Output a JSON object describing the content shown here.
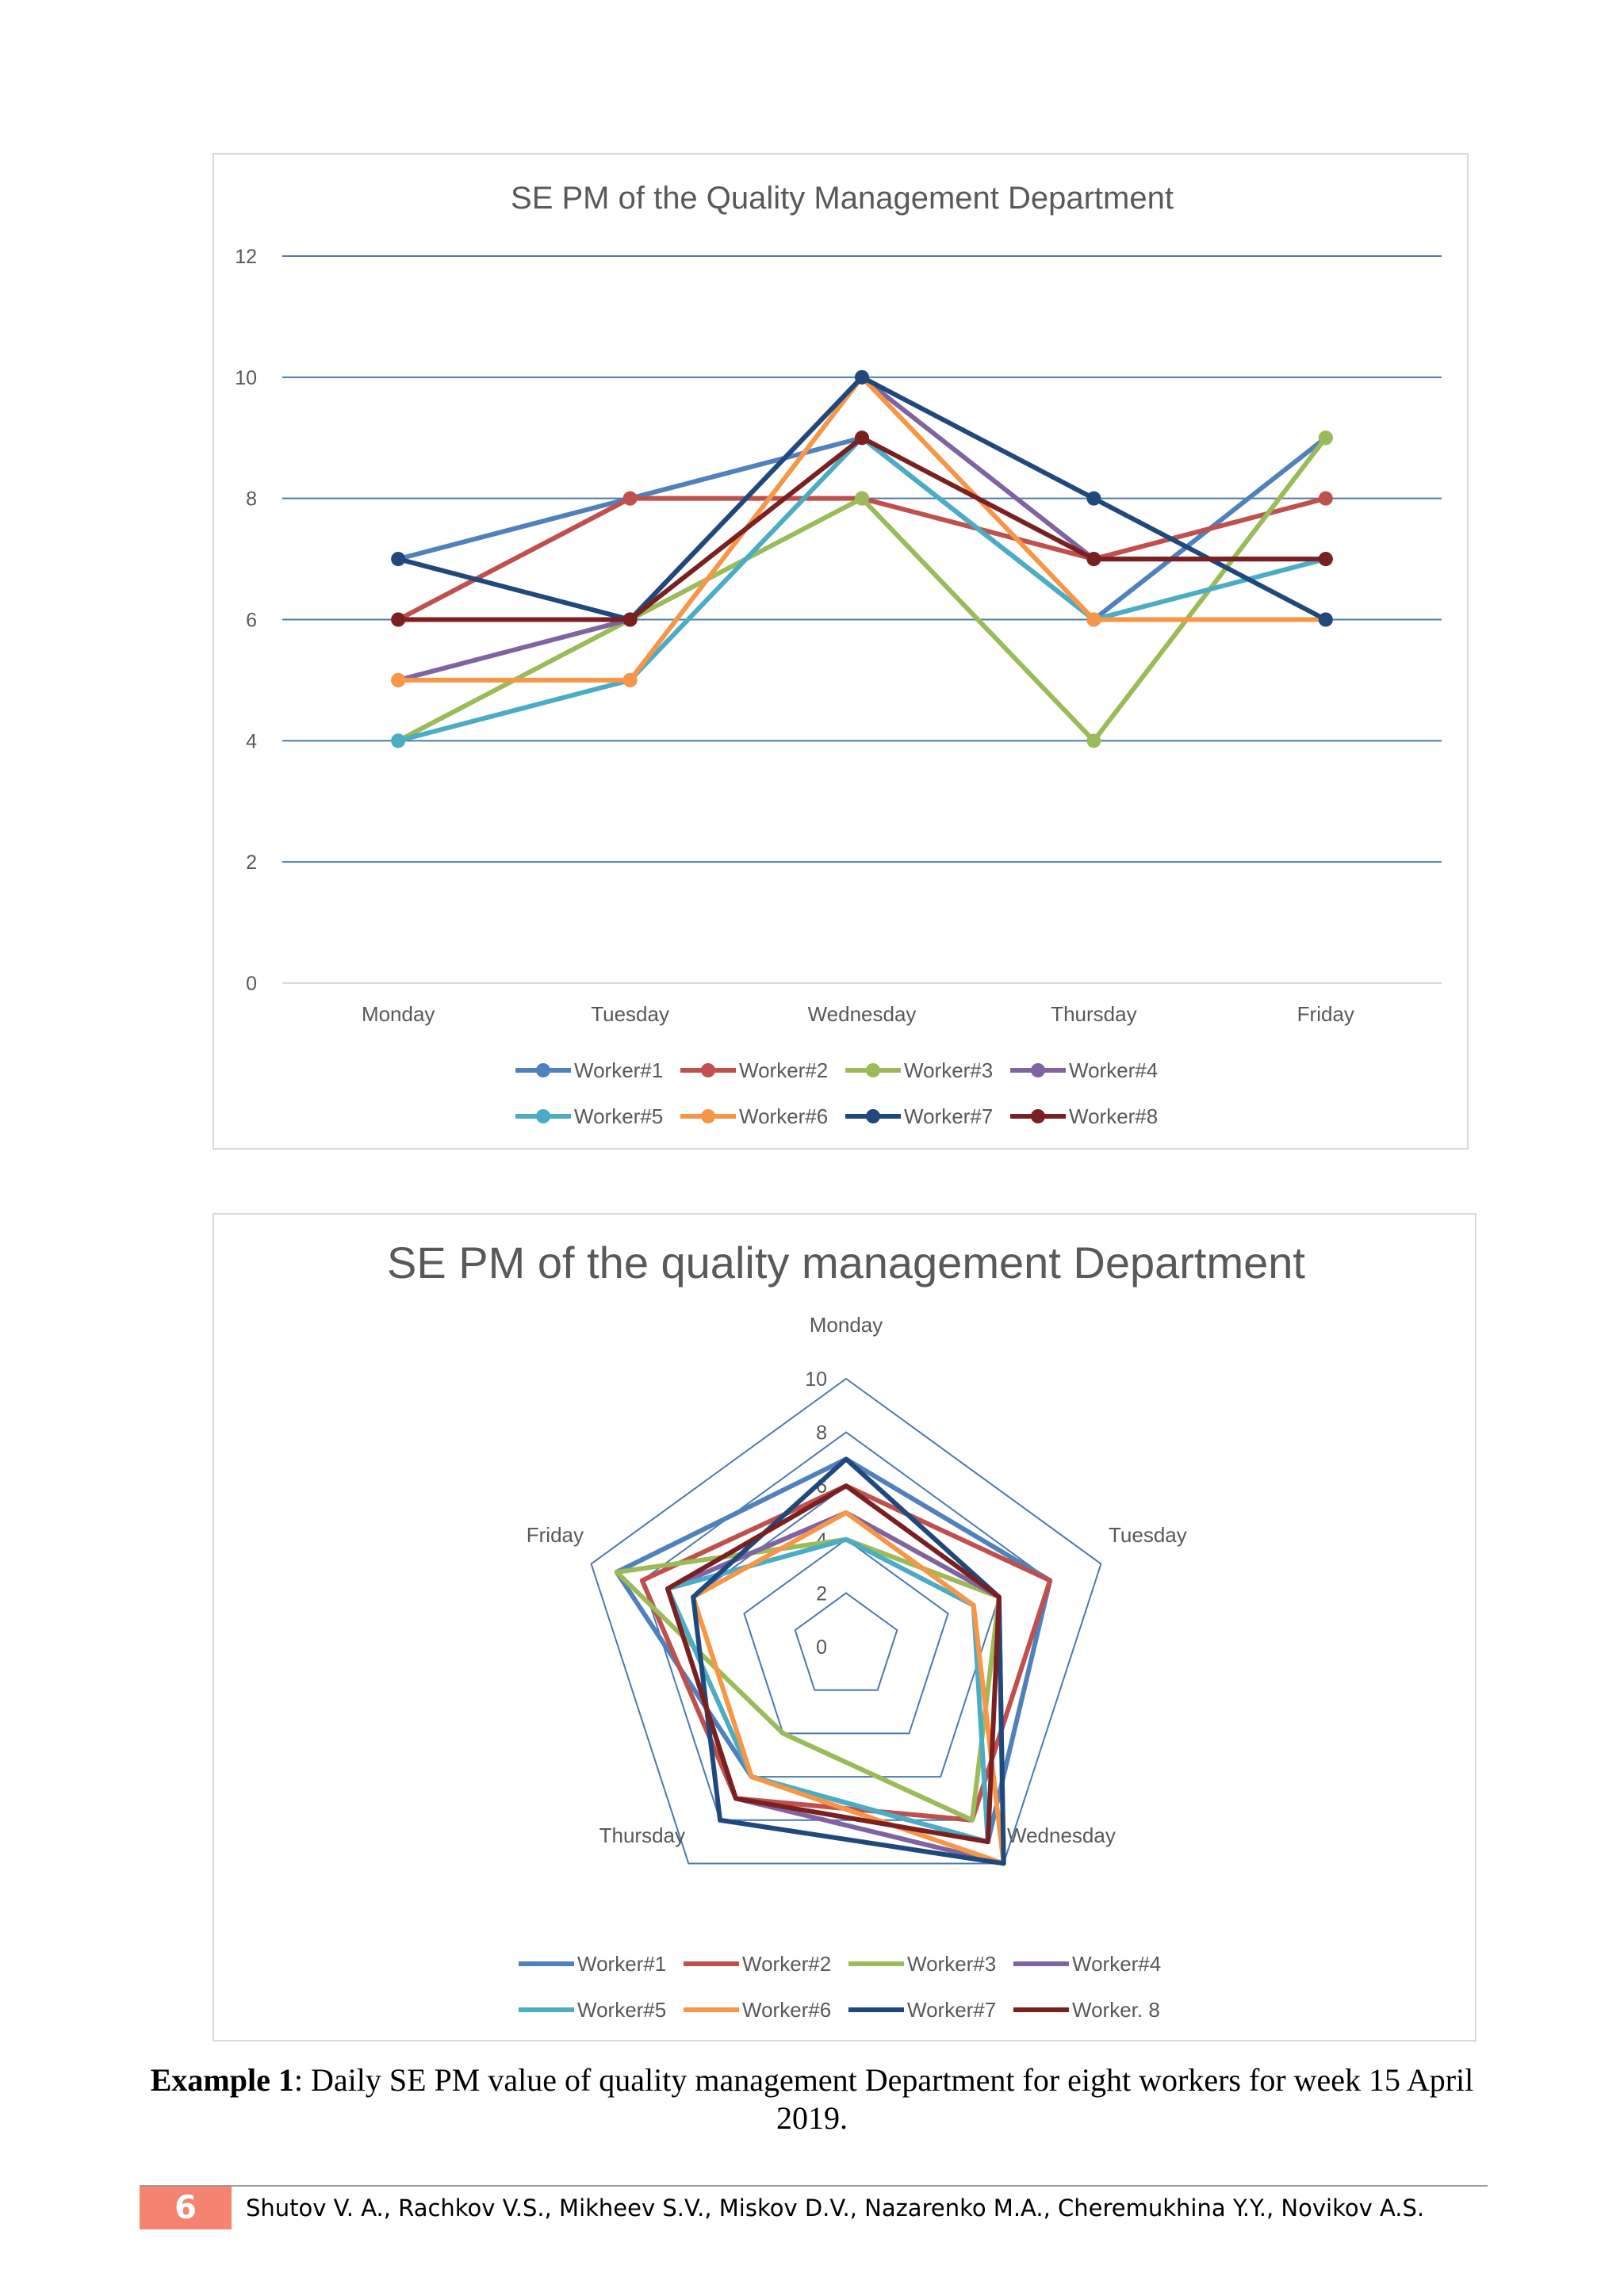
{
  "chart_data": [
    {
      "type": "line",
      "title": "SE PM of the Quality Management Department",
      "categories": [
        "Monday",
        "Tuesday",
        "Wednesday",
        "Thursday",
        "Friday"
      ],
      "ylim": [
        0,
        12
      ],
      "yticks": [
        0,
        2,
        4,
        6,
        8,
        10,
        12
      ],
      "grid": true,
      "legend": "bottom",
      "series": [
        {
          "name": "Worker#1",
          "color": "#4f81bd",
          "values": [
            7,
            8,
            9,
            6,
            9
          ]
        },
        {
          "name": "Worker#2",
          "color": "#c0504d",
          "values": [
            6,
            8,
            8,
            7,
            8
          ]
        },
        {
          "name": "Worker#3",
          "color": "#9bbb59",
          "values": [
            4,
            6,
            8,
            4,
            9
          ]
        },
        {
          "name": "Worker#4",
          "color": "#8064a2",
          "values": [
            5,
            6,
            10,
            7,
            7
          ]
        },
        {
          "name": "Worker#5",
          "color": "#4bacc6",
          "values": [
            4,
            5,
            9,
            6,
            7
          ]
        },
        {
          "name": "Worker#6",
          "color": "#f79646",
          "values": [
            5,
            5,
            10,
            6,
            6
          ]
        },
        {
          "name": "Worker#7",
          "color": "#1f497d",
          "values": [
            7,
            6,
            10,
            8,
            6
          ]
        },
        {
          "name": "Worker#8",
          "color": "#7b2020",
          "values": [
            6,
            6,
            9,
            7,
            7
          ]
        }
      ]
    },
    {
      "type": "radar",
      "title": "SE PM of the quality management Department",
      "categories": [
        "Monday",
        "Tuesday",
        "Wednesday",
        "Thursday",
        "Friday"
      ],
      "rlim": [
        0,
        10
      ],
      "rticks": [
        0,
        2,
        4,
        6,
        8,
        10
      ],
      "legend": "bottom",
      "series": [
        {
          "name": "Worker#1",
          "color": "#4f81bd",
          "values": [
            7,
            8,
            9,
            6,
            9
          ]
        },
        {
          "name": "Worker#2",
          "color": "#c0504d",
          "values": [
            6,
            8,
            8,
            7,
            8
          ]
        },
        {
          "name": "Worker#3",
          "color": "#9bbb59",
          "values": [
            4,
            6,
            8,
            4,
            9
          ]
        },
        {
          "name": "Worker#4",
          "color": "#8064a2",
          "values": [
            5,
            6,
            10,
            7,
            7
          ]
        },
        {
          "name": "Worker#5",
          "color": "#4bacc6",
          "values": [
            4,
            5,
            9,
            6,
            7
          ]
        },
        {
          "name": "Worker#6",
          "color": "#f79646",
          "values": [
            5,
            5,
            10,
            6,
            6
          ]
        },
        {
          "name": "Worker#7",
          "color": "#1f497d",
          "values": [
            7,
            6,
            10,
            8,
            6
          ]
        },
        {
          "name": "Worker. 8",
          "color": "#7b2020",
          "values": [
            6,
            6,
            9,
            7,
            7
          ]
        }
      ]
    }
  ],
  "caption": {
    "label": "Example 1",
    "text": ": Daily SE PM value of quality management Department for eight workers for week 15 April 2019."
  },
  "footer": {
    "page_number": "6",
    "authors": "Shutov V. A., Rachkov V.S., Mikheev S.V., Miskov D.V., Nazarenko M.A., Cheremukhina Y.Y., Novikov A.S."
  }
}
